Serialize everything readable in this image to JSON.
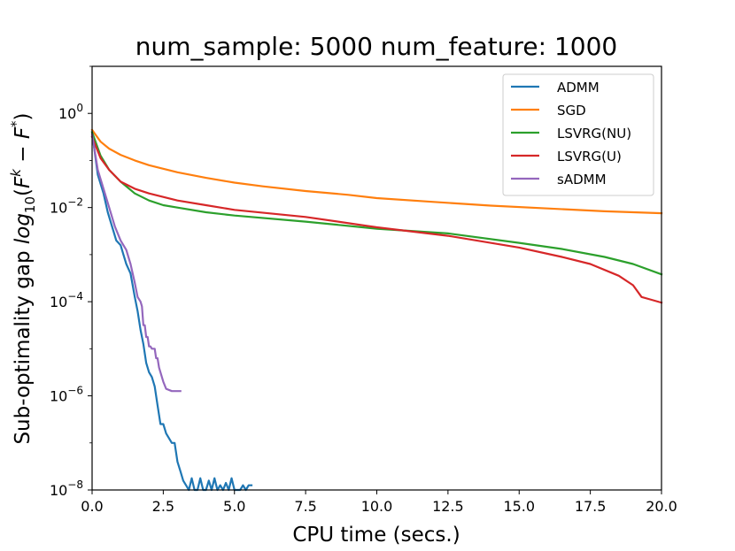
{
  "chart_data": {
    "type": "line",
    "title": "num_sample: 5000 num_feature: 1000",
    "xlabel": "CPU time (secs.)",
    "ylabel_prefix": "Sub-optimality gap ",
    "ylabel_log": "log",
    "ylabel_sub": "10",
    "ylabel_paren_open": "(",
    "ylabel_F": "F",
    "ylabel_sup_k": "k",
    "ylabel_minus": " − ",
    "ylabel_F2": "F",
    "ylabel_sup_star": "*",
    "ylabel_paren_close": ")",
    "xlim": [
      0,
      20
    ],
    "ylim_log10": [
      -8,
      1
    ],
    "yscale": "log",
    "grid": false,
    "legend_position": "top-right",
    "x_ticks": [
      {
        "value": 0,
        "label": "0.0"
      },
      {
        "value": 2.5,
        "label": "2.5"
      },
      {
        "value": 5,
        "label": "5.0"
      },
      {
        "value": 7.5,
        "label": "7.5"
      },
      {
        "value": 10,
        "label": "10.0"
      },
      {
        "value": 12.5,
        "label": "12.5"
      },
      {
        "value": 15,
        "label": "15.0"
      },
      {
        "value": 17.5,
        "label": "17.5"
      },
      {
        "value": 20,
        "label": "20.0"
      }
    ],
    "y_ticks": [
      {
        "exp": 0,
        "base": "10",
        "sup": "0"
      },
      {
        "exp": -2,
        "base": "10",
        "sup": "−2"
      },
      {
        "exp": -4,
        "base": "10",
        "sup": "−4"
      },
      {
        "exp": -6,
        "base": "10",
        "sup": "−6"
      },
      {
        "exp": -8,
        "base": "10",
        "sup": "−8"
      }
    ],
    "series": [
      {
        "name": "ADMM",
        "color": "#1f77b4",
        "x": [
          0,
          0.2,
          0.4,
          0.55,
          0.7,
          0.85,
          1.0,
          1.1,
          1.2,
          1.35,
          1.5,
          1.6,
          1.7,
          1.8,
          1.9,
          2.0,
          2.1,
          2.2,
          2.3,
          2.4,
          2.5,
          2.6,
          2.8,
          2.9,
          3.0,
          3.1,
          3.2,
          3.3,
          3.4,
          3.5,
          3.6,
          3.7,
          3.8,
          3.9,
          4.0,
          4.1,
          4.2,
          4.3,
          4.4,
          4.5,
          4.6,
          4.7,
          4.8,
          4.9,
          5.0,
          5.2,
          5.3,
          5.4,
          5.5,
          5.6
        ],
        "log10_y": [
          -0.4,
          -1.3,
          -1.7,
          -2.1,
          -2.4,
          -2.7,
          -2.8,
          -3.0,
          -3.2,
          -3.4,
          -3.9,
          -4.2,
          -4.6,
          -4.9,
          -5.3,
          -5.5,
          -5.6,
          -5.8,
          -6.2,
          -6.6,
          -6.6,
          -6.8,
          -7.0,
          -7.0,
          -7.4,
          -7.6,
          -7.8,
          -7.9,
          -8.0,
          -7.75,
          -8.0,
          -8.0,
          -7.75,
          -8.0,
          -8.0,
          -7.8,
          -8.0,
          -7.75,
          -8.0,
          -7.9,
          -8.0,
          -7.85,
          -8.0,
          -7.75,
          -8.0,
          -8.0,
          -7.9,
          -8.0,
          -7.9,
          -7.9
        ]
      },
      {
        "name": "SGD",
        "color": "#ff7f0e",
        "x": [
          0,
          0.3,
          0.6,
          1.0,
          1.5,
          2.0,
          3.0,
          4.0,
          5.0,
          6.0,
          7.5,
          9.0,
          10.0,
          12.0,
          14.0,
          16.0,
          18.0,
          20.0
        ],
        "log10_y": [
          -0.35,
          -0.6,
          -0.75,
          -0.88,
          -1.0,
          -1.1,
          -1.25,
          -1.37,
          -1.47,
          -1.55,
          -1.65,
          -1.73,
          -1.8,
          -1.88,
          -1.96,
          -2.02,
          -2.08,
          -2.12
        ]
      },
      {
        "name": "LSVRG(NU)",
        "color": "#2ca02c",
        "x": [
          0,
          0.3,
          0.6,
          1.0,
          1.5,
          2.0,
          2.5,
          3.0,
          4.0,
          5.0,
          7.5,
          10.0,
          12.5,
          15.0,
          16.5,
          18.0,
          19.0,
          20.0
        ],
        "log10_y": [
          -0.4,
          -0.9,
          -1.2,
          -1.45,
          -1.7,
          -1.85,
          -1.95,
          -2.0,
          -2.1,
          -2.17,
          -2.3,
          -2.45,
          -2.55,
          -2.75,
          -2.88,
          -3.05,
          -3.2,
          -3.42
        ]
      },
      {
        "name": "LSVRG(U)",
        "color": "#d62728",
        "x": [
          0,
          0.3,
          0.6,
          1.0,
          1.5,
          2.0,
          3.0,
          4.0,
          5.0,
          7.5,
          10.0,
          12.5,
          15.0,
          16.5,
          17.5,
          18.5,
          19.0,
          19.3,
          19.6,
          20.0
        ],
        "log10_y": [
          -0.5,
          -0.95,
          -1.2,
          -1.45,
          -1.6,
          -1.7,
          -1.85,
          -1.95,
          -2.05,
          -2.2,
          -2.42,
          -2.6,
          -2.85,
          -3.05,
          -3.2,
          -3.45,
          -3.65,
          -3.9,
          -3.95,
          -4.02
        ]
      },
      {
        "name": "sADMM",
        "color": "#9467bd",
        "x": [
          0,
          0.2,
          0.4,
          0.6,
          0.8,
          1.0,
          1.2,
          1.35,
          1.5,
          1.6,
          1.7,
          1.75,
          1.8,
          1.85,
          1.9,
          1.95,
          2.0,
          2.05,
          2.1,
          2.2,
          2.25,
          2.3,
          2.35,
          2.4,
          2.5,
          2.6,
          2.8,
          3.1
        ],
        "log10_y": [
          -0.45,
          -1.2,
          -1.6,
          -2.0,
          -2.4,
          -2.7,
          -2.9,
          -3.2,
          -3.6,
          -3.9,
          -4.0,
          -4.1,
          -4.5,
          -4.5,
          -4.75,
          -4.75,
          -4.95,
          -4.95,
          -5.0,
          -5.0,
          -5.2,
          -5.2,
          -5.4,
          -5.5,
          -5.7,
          -5.85,
          -5.9,
          -5.9
        ]
      }
    ]
  }
}
